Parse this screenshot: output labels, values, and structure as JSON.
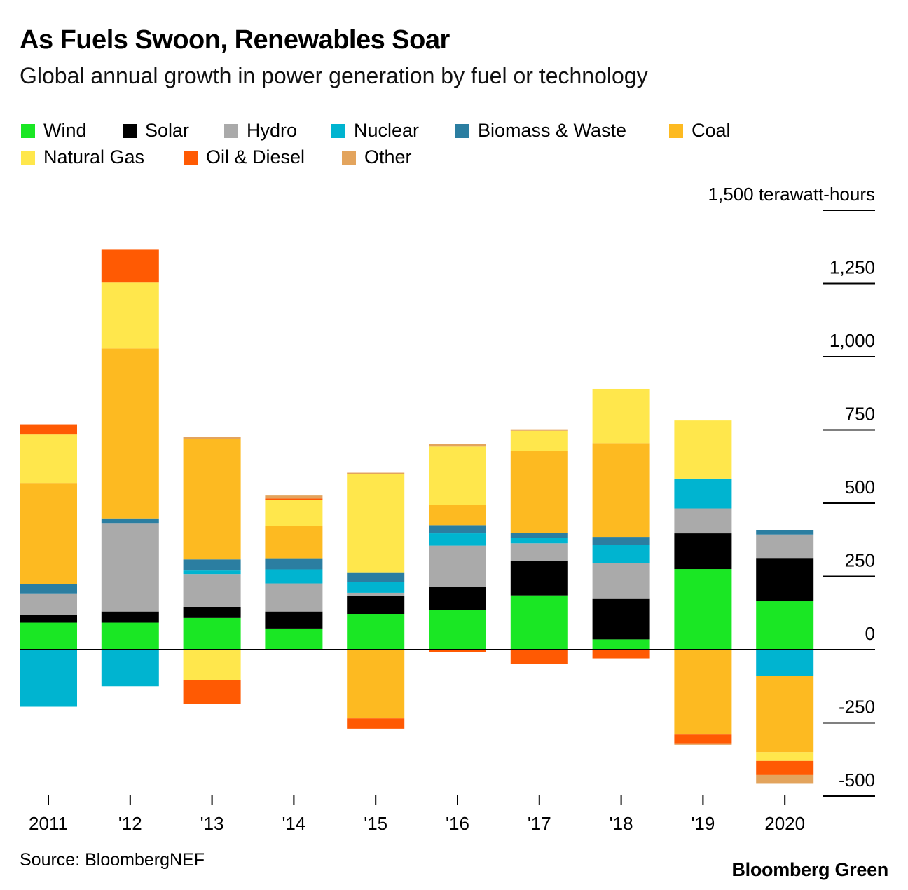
{
  "title": "As Fuels Swoon, Renewables Soar",
  "subtitle": "Global annual growth in power generation by fuel or technology",
  "source": "Source: BloombergNEF",
  "brand": "Bloomberg Green",
  "chart_data": {
    "type": "bar",
    "stacked": true,
    "title": "As Fuels Swoon, Renewables Soar",
    "subtitle": "Global annual growth in power generation by fuel or technology",
    "ylabel": "1,500 terawatt-hours",
    "ylim": [
      -500,
      1500
    ],
    "y_ticks": [
      {
        "value": 1500,
        "label": "1,500 terawatt-hours"
      },
      {
        "value": 1250,
        "label": "1,250"
      },
      {
        "value": 1000,
        "label": "1,000"
      },
      {
        "value": 750,
        "label": "750"
      },
      {
        "value": 500,
        "label": "500"
      },
      {
        "value": 250,
        "label": "250"
      },
      {
        "value": 0,
        "label": "0"
      },
      {
        "value": -250,
        "label": "-250"
      },
      {
        "value": -500,
        "label": "-500"
      }
    ],
    "categories": [
      "2011",
      "'12",
      "'13",
      "'14",
      "'15",
      "'16",
      "'17",
      "'18",
      "'19",
      "2020"
    ],
    "legend_position": "top",
    "series": [
      {
        "name": "Wind",
        "color": "#1ae724",
        "values": [
          92,
          92,
          108,
          72,
          122,
          135,
          185,
          35,
          275,
          165
        ]
      },
      {
        "name": "Solar",
        "color": "#000000",
        "values": [
          28,
          38,
          38,
          58,
          62,
          80,
          118,
          138,
          122,
          148
        ]
      },
      {
        "name": "Hydro",
        "color": "#aaaaaa",
        "values": [
          72,
          300,
          112,
          96,
          10,
          140,
          60,
          122,
          85,
          80
        ]
      },
      {
        "name": "Nuclear",
        "color": "#00b4d0",
        "values": [
          -195,
          -125,
          12,
          48,
          38,
          42,
          18,
          62,
          102,
          -90
        ]
      },
      {
        "name": "Biomass & Waste",
        "color": "#2b7ea1",
        "values": [
          32,
          18,
          38,
          38,
          32,
          28,
          18,
          28,
          0,
          15
        ]
      },
      {
        "name": "Coal",
        "color": "#fdba21",
        "values": [
          345,
          580,
          410,
          110,
          -235,
          68,
          280,
          320,
          -290,
          -260
        ]
      },
      {
        "name": "Natural Gas",
        "color": "#ffe74c",
        "values": [
          165,
          225,
          -105,
          88,
          335,
          200,
          68,
          185,
          198,
          -30
        ]
      },
      {
        "name": "Oil & Diesel",
        "color": "#ff5a03",
        "values": [
          35,
          112,
          -80,
          6,
          -35,
          -8,
          -48,
          -30,
          -30,
          -48
        ]
      },
      {
        "name": "Other",
        "color": "#e3a45d",
        "values": [
          0,
          0,
          8,
          10,
          5,
          8,
          5,
          0,
          -5,
          -30
        ]
      }
    ]
  }
}
